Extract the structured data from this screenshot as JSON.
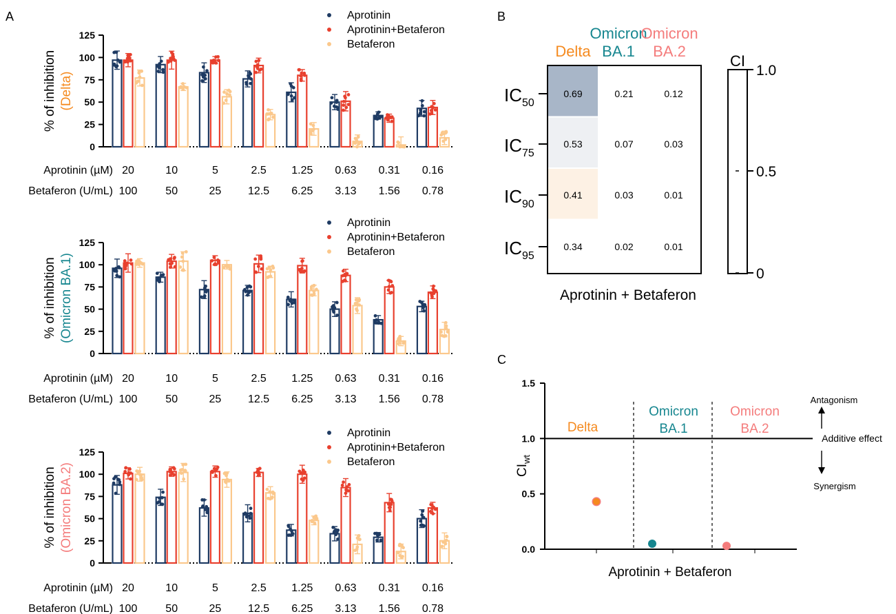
{
  "panel_letters": {
    "a": "A",
    "b": "B",
    "c": "C"
  },
  "colors": {
    "aprotinin": "#1f3b63",
    "combo": "#e8402e",
    "betaferon": "#fbc88c",
    "delta": "#f58a1f",
    "ba1": "#16868f",
    "ba2": "#f47c7c",
    "heat_high": "#a8b6c8",
    "heat_mid": "#eef0f3",
    "heat_low": "#fdf1e4"
  },
  "panel_a": {
    "legend": [
      "Aprotinin",
      "Aprotinin+Betaferon",
      "Betaferon"
    ],
    "ylabel_prefix": "% of inhibition",
    "yticks": [
      "0",
      "25",
      "50",
      "75",
      "100",
      "125"
    ],
    "row_labels": [
      "Aprotinin (µM)",
      "Betaferon (U/mL)"
    ],
    "aprotinin_doses": [
      "20",
      "10",
      "5",
      "2.5",
      "1.25",
      "0.63",
      "0.31",
      "0.16"
    ],
    "betaferon_doses": [
      "100",
      "50",
      "25",
      "12.5",
      "6.25",
      "3.13",
      "1.56",
      "0.78"
    ]
  },
  "panel_b": {
    "columns": [
      {
        "line1": "",
        "line2": "Delta",
        "color": "#f58a1f"
      },
      {
        "line1": "Omicron",
        "line2": "BA.1",
        "color": "#16868f"
      },
      {
        "line1": "Omicron",
        "line2": "BA.2",
        "color": "#f47c7c"
      }
    ],
    "rows": [
      {
        "base": "IC",
        "sub": "50",
        "values": [
          "0.69",
          "0.21",
          "0.12"
        ]
      },
      {
        "base": "IC",
        "sub": "75",
        "values": [
          "0.53",
          "0.07",
          "0.03"
        ]
      },
      {
        "base": "IC",
        "sub": "90",
        "values": [
          "0.41",
          "0.03",
          "0.01"
        ]
      },
      {
        "base": "IC",
        "sub": "95",
        "values": [
          "0.34",
          "0.02",
          "0.01"
        ]
      }
    ],
    "xlabel": "Aprotinin + Betaferon",
    "colorbar_title": "CI",
    "colorbar_ticks": [
      "1.0",
      "0.5",
      "0"
    ]
  },
  "panel_c": {
    "ylabel_base": "CI",
    "ylabel_sub": "wt",
    "yticks": [
      "0.0",
      "0.5",
      "1.0",
      "1.5"
    ],
    "xlabel": "Aprotinin + Betaferon",
    "annotations": {
      "antagonism": "Antagonism",
      "additive": "Additive effect",
      "synergism": "Synergism"
    }
  },
  "chart_data": [
    {
      "type": "bar",
      "panel": "A-top",
      "ylabel": "% of inhibition (Delta)",
      "ylim": [
        0,
        125
      ],
      "categories": [
        "20 / 100",
        "10 / 50",
        "5 / 25",
        "2.5 / 12.5",
        "1.25 / 6.25",
        "0.63 / 3.13",
        "0.31 / 1.56",
        "0.16 / 0.78"
      ],
      "series": [
        {
          "name": "Aprotinin",
          "values": [
            97,
            92,
            83,
            76,
            61,
            50,
            35,
            43
          ]
        },
        {
          "name": "Aprotinin+Betaferon",
          "values": [
            97,
            97,
            97,
            91,
            80,
            51,
            32,
            44
          ]
        },
        {
          "name": "Betaferon",
          "values": [
            77,
            67,
            56,
            36,
            20,
            6,
            2,
            10
          ]
        }
      ]
    },
    {
      "type": "bar",
      "panel": "A-middle",
      "ylabel": "% of inhibition (Omicron BA.1)",
      "ylim": [
        0,
        125
      ],
      "categories": [
        "20 / 100",
        "10 / 50",
        "5 / 25",
        "2.5 / 12.5",
        "1.25 / 6.25",
        "0.63 / 3.13",
        "0.31 / 1.56",
        "0.16 / 0.78"
      ],
      "series": [
        {
          "name": "Aprotinin",
          "values": [
            96,
            86,
            72,
            71,
            61,
            50,
            38,
            53
          ]
        },
        {
          "name": "Aprotinin+Betaferon",
          "values": [
            102,
            104,
            105,
            101,
            99,
            88,
            75,
            69
          ]
        },
        {
          "name": "Betaferon",
          "values": [
            102,
            104,
            100,
            92,
            71,
            54,
            14,
            27
          ]
        }
      ]
    },
    {
      "type": "bar",
      "panel": "A-bottom",
      "ylabel": "% of inhibition (Omicron BA.2)",
      "ylim": [
        0,
        125
      ],
      "categories": [
        "20 / 100",
        "10 / 50",
        "5 / 25",
        "2.5 / 12.5",
        "1.25 / 6.25",
        "0.63 / 3.13",
        "0.31 / 1.56",
        "0.16 / 0.78"
      ],
      "series": [
        {
          "name": "Aprotinin",
          "values": [
            88,
            74,
            62,
            56,
            37,
            33,
            29,
            50
          ]
        },
        {
          "name": "Aprotinin+Betaferon",
          "values": [
            101,
            103,
            103,
            102,
            100,
            85,
            68,
            62
          ]
        },
        {
          "name": "Betaferon",
          "values": [
            100,
            102,
            94,
            79,
            48,
            21,
            13,
            25
          ]
        }
      ]
    },
    {
      "type": "heatmap",
      "panel": "B",
      "x": [
        "Delta",
        "Omicron BA.1",
        "Omicron BA.2"
      ],
      "y": [
        "IC50",
        "IC75",
        "IC90",
        "IC95"
      ],
      "values": [
        [
          0.69,
          0.21,
          0.12
        ],
        [
          0.53,
          0.07,
          0.03
        ],
        [
          0.41,
          0.03,
          0.01
        ],
        [
          0.34,
          0.02,
          0.01
        ]
      ],
      "colorbar_range": [
        0,
        1.0
      ]
    },
    {
      "type": "scatter",
      "panel": "C",
      "ylim": [
        0,
        1.5
      ],
      "reference_line": 1.0,
      "points": [
        {
          "label": "Delta",
          "y": 0.43
        },
        {
          "label": "Omicron BA.1",
          "y": 0.05
        },
        {
          "label": "Omicron BA.2",
          "y": 0.03
        }
      ]
    }
  ]
}
